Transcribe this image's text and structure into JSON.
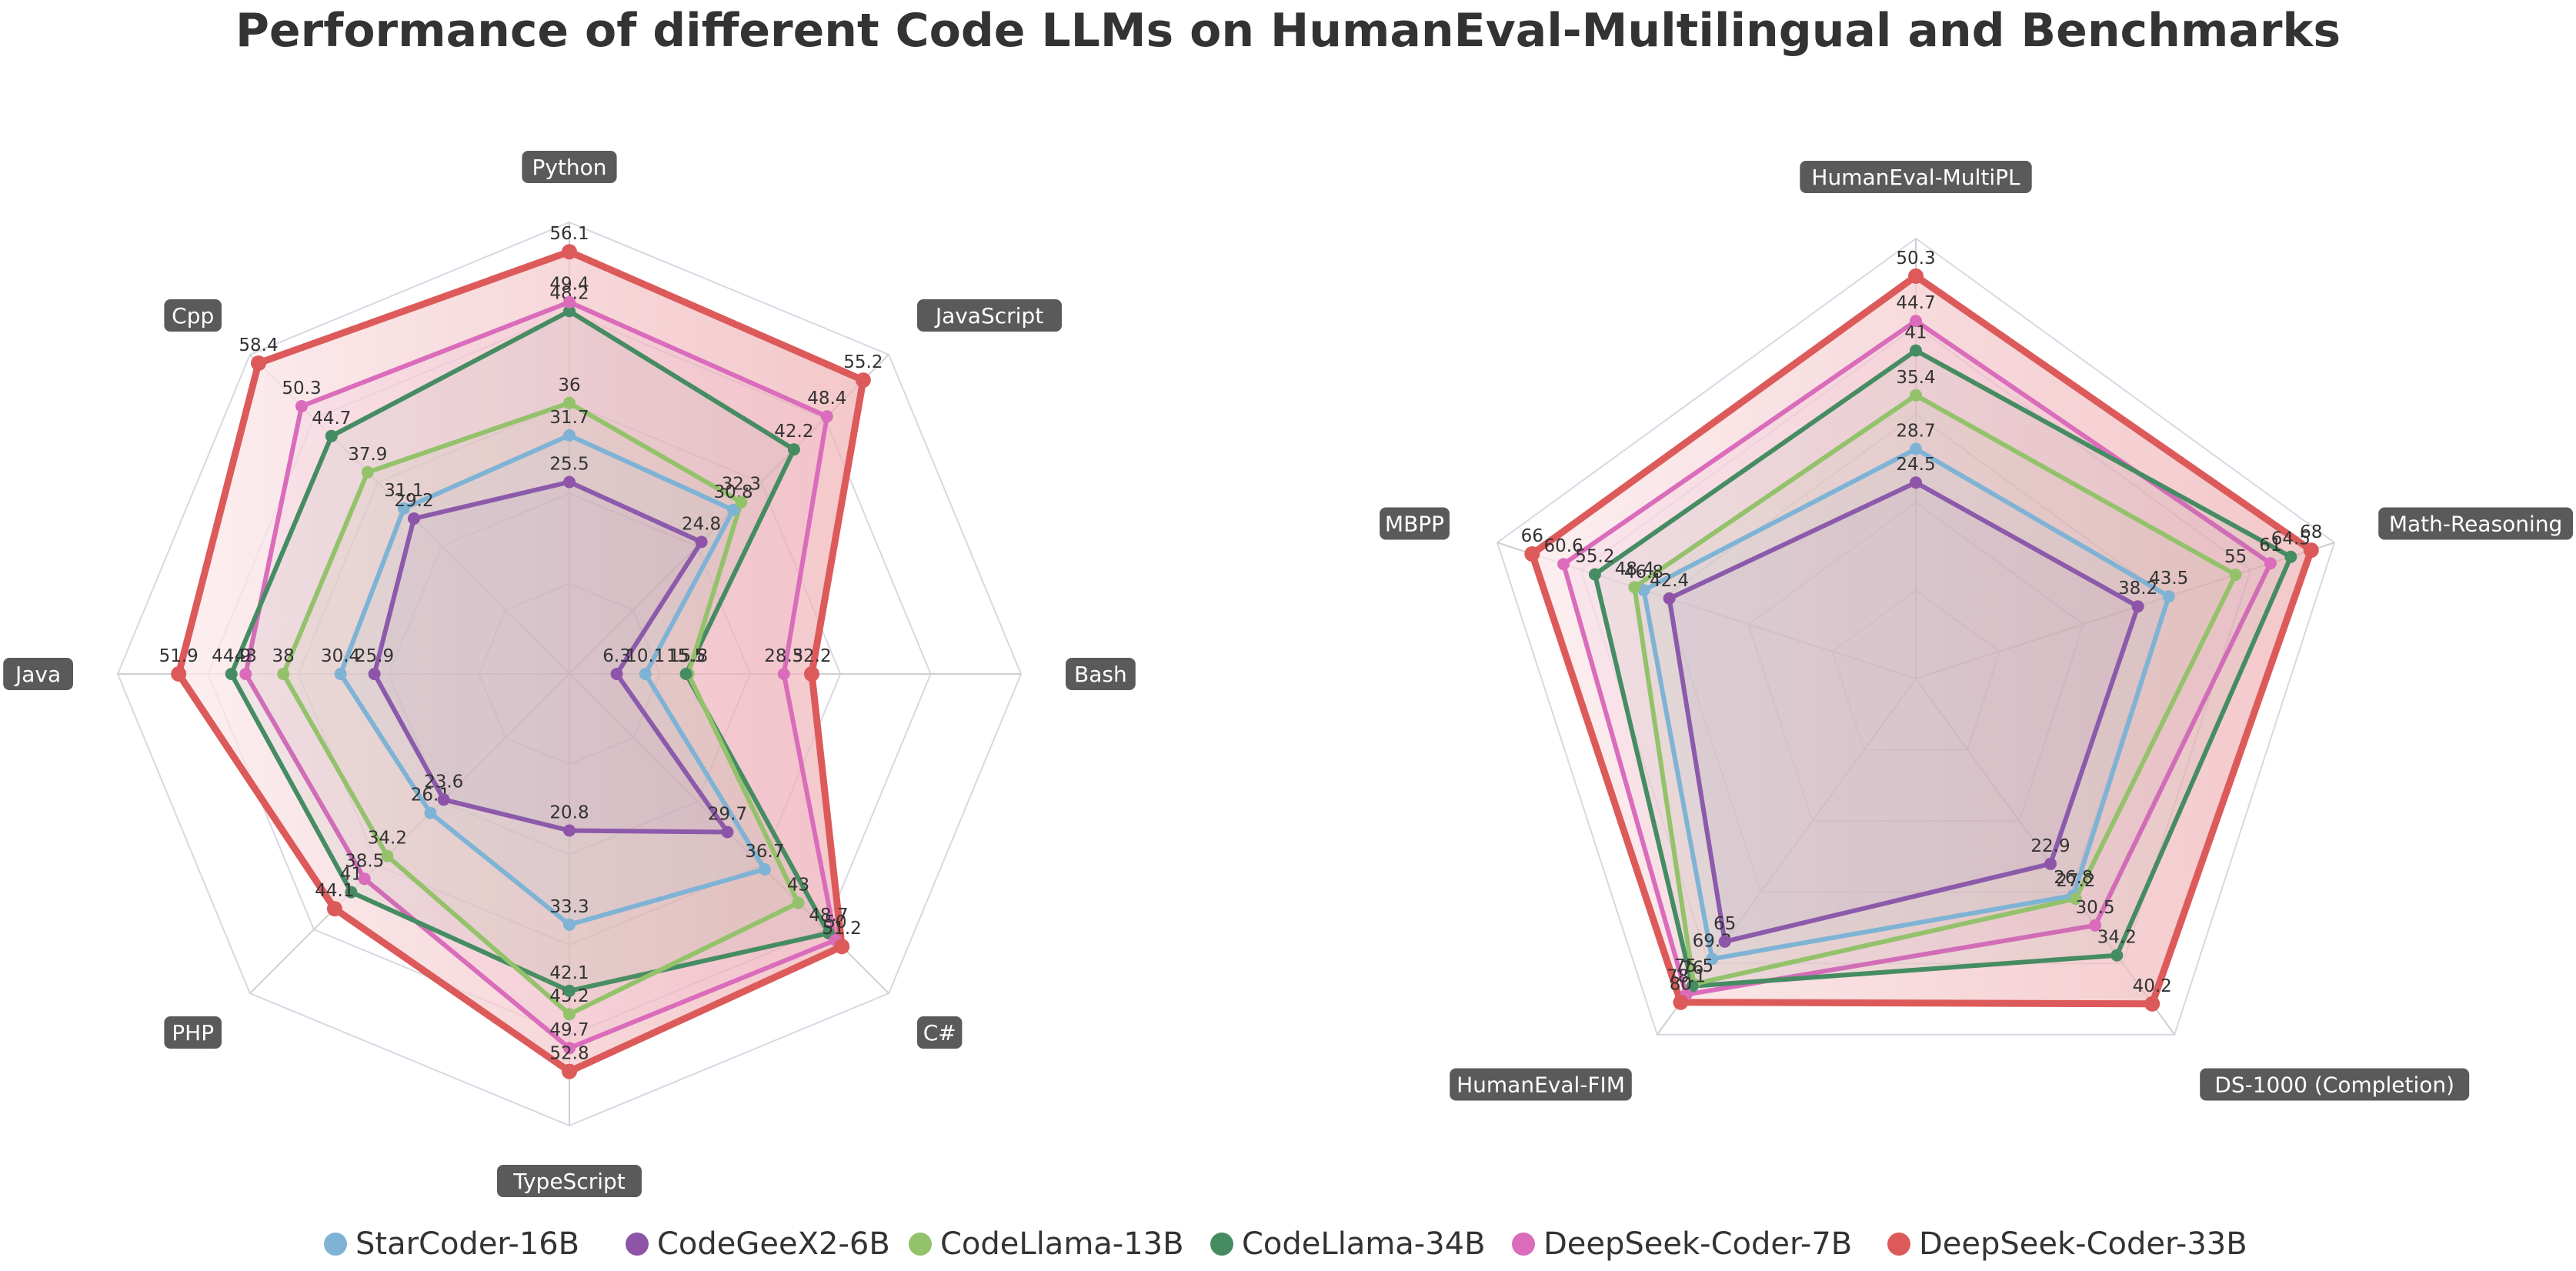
{
  "title": "Performance of different Code LLMs on HumanEval-Multilingual and Benchmarks",
  "colors": {
    "StarCoder-16B": "#7fb3d5",
    "CodeGeeX2-6B": "#8e54a8",
    "CodeLlama-13B": "#93c26b",
    "CodeLlama-34B": "#468c63",
    "DeepSeek-Coder-7B": "#da6cbb",
    "DeepSeek-Coder-33B": "#dd5a5a"
  },
  "legend": [
    "StarCoder-16B",
    "CodeGeeX2-6B",
    "CodeLlama-13B",
    "CodeLlama-34B",
    "DeepSeek-Coder-7B",
    "DeepSeek-Coder-33B"
  ],
  "chart_data": [
    {
      "type": "radar",
      "axes": [
        "Python",
        "JavaScript",
        "Bash",
        "C#",
        "TypeScript",
        "PHP",
        "Java",
        "Cpp"
      ],
      "series": [
        {
          "name": "StarCoder-16B",
          "values": [
            31.7,
            30.8,
            10.1,
            36.7,
            33.3,
            26.1,
            30.4,
            31.1
          ]
        },
        {
          "name": "CodeGeeX2-6B",
          "values": [
            25.5,
            24.8,
            6.3,
            29.7,
            20.8,
            23.6,
            25.9,
            29.2
          ]
        },
        {
          "name": "CodeLlama-13B",
          "values": [
            36,
            32.3,
            15.8,
            43,
            45.2,
            34.2,
            38,
            37.9
          ]
        },
        {
          "name": "CodeLlama-34B",
          "values": [
            48.2,
            42.2,
            15.5,
            48.7,
            42.1,
            41,
            44.9,
            44.7
          ]
        },
        {
          "name": "DeepSeek-Coder-7B",
          "values": [
            49.4,
            48.4,
            28.5,
            50,
            49.7,
            38.5,
            43,
            50.3
          ]
        },
        {
          "name": "DeepSeek-Coder-33B",
          "values": [
            56.1,
            55.2,
            32.2,
            51.2,
            52.8,
            44.1,
            51.9,
            58.4
          ]
        }
      ],
      "label_texts": [
        [
          "31.7",
          "30.8",
          "10.1",
          "36.7",
          "33.3",
          "26.1",
          "30.4",
          "31.1"
        ],
        [
          "25.5",
          "24.8",
          "6.3",
          "29.7",
          "20.8",
          "23.6",
          "25.9",
          "29.2"
        ],
        [
          "36",
          "32.3",
          "15.8",
          "43",
          "45.2",
          "34.2",
          "38",
          "37.9"
        ],
        [
          "48.2",
          "42.2",
          "15.5",
          "48.7",
          "42.1",
          "41",
          "44.9",
          "44.7"
        ],
        [
          "49.4",
          "48.4",
          "28.5",
          "50",
          "49.7",
          "38.5",
          "43",
          "50.3"
        ],
        [
          "56.1",
          "55.2",
          "32.2",
          "51.2",
          "52.8",
          "44.1",
          "51.9",
          "58.4"
        ]
      ]
    },
    {
      "type": "radar",
      "axes": [
        "HumanEval-MultiPL",
        "Math-Reasoning",
        "DS-1000 (Completion)",
        "HumanEval-FIM",
        "MBPP"
      ],
      "series": [
        {
          "name": "StarCoder-16B",
          "values": [
            28.7,
            43.5,
            26.8,
            69.3,
            46.8
          ]
        },
        {
          "name": "CodeGeeX2-6B",
          "values": [
            24.5,
            38.2,
            22.9,
            65,
            42.4
          ]
        },
        {
          "name": "CodeLlama-13B",
          "values": [
            35.4,
            55,
            27.2,
            75.5,
            48.4
          ]
        },
        {
          "name": "CodeLlama-34B",
          "values": [
            41,
            64.5,
            34.2,
            76,
            55.2
          ]
        },
        {
          "name": "DeepSeek-Coder-7B",
          "values": [
            44.7,
            61,
            30.5,
            78.1,
            60.6
          ]
        },
        {
          "name": "DeepSeek-Coder-33B",
          "values": [
            50.3,
            68,
            40.2,
            80,
            66
          ]
        }
      ]
    }
  ]
}
